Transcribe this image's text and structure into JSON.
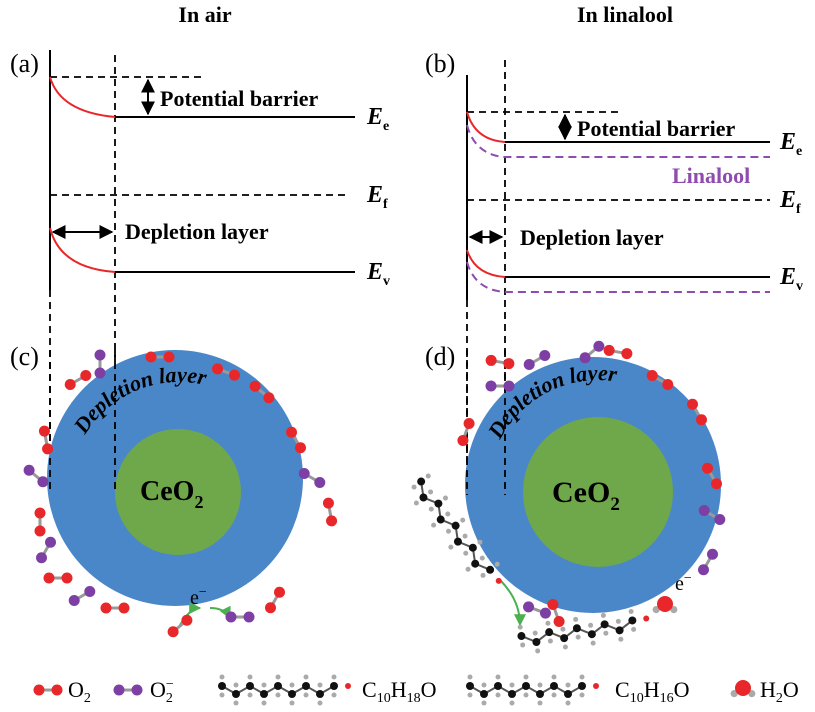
{
  "panels": {
    "a": {
      "header": "In air",
      "label": "(a)",
      "barrier": "Potential barrier",
      "depletion": "Depletion layer",
      "levels": [
        {
          "base": "E",
          "sub": "e"
        },
        {
          "base": "E",
          "sub": "f"
        },
        {
          "base": "E",
          "sub": "v"
        }
      ]
    },
    "b": {
      "header": "In linalool",
      "label": "(b)",
      "barrier": "Potential barrier",
      "depletion": "Depletion layer",
      "gas": "Linalool",
      "levels": [
        {
          "base": "E",
          "sub": "e"
        },
        {
          "base": "E",
          "sub": "f"
        },
        {
          "base": "E",
          "sub": "v"
        }
      ]
    },
    "c": {
      "label": "(c)",
      "shell": "Depletion layer",
      "core": {
        "base": "CeO",
        "sub": "2"
      },
      "electron": {
        "base": "e",
        "sup": "−"
      }
    },
    "d": {
      "label": "(d)",
      "shell": "Depletion layer",
      "core": {
        "base": "CeO",
        "sub": "2"
      },
      "electron": {
        "base": "e",
        "sup": "−"
      }
    }
  },
  "legend": [
    {
      "formula": [
        {
          "text": "O"
        },
        {
          "sub": "2"
        }
      ]
    },
    {
      "formula": [
        {
          "text": "O"
        },
        {
          "sub": "2"
        },
        {
          "sup": "−"
        }
      ]
    },
    {
      "formula": [
        {
          "text": "C"
        },
        {
          "sub": "10"
        },
        {
          "text": "H"
        },
        {
          "sub": "18"
        },
        {
          "text": "O"
        }
      ]
    },
    {
      "formula": [
        {
          "text": "C"
        },
        {
          "sub": "10"
        },
        {
          "text": "H"
        },
        {
          "sub": "16"
        },
        {
          "text": "O"
        }
      ]
    },
    {
      "formula": [
        {
          "text": "H"
        },
        {
          "sub": "2"
        },
        {
          "text": "O"
        }
      ]
    }
  ]
}
